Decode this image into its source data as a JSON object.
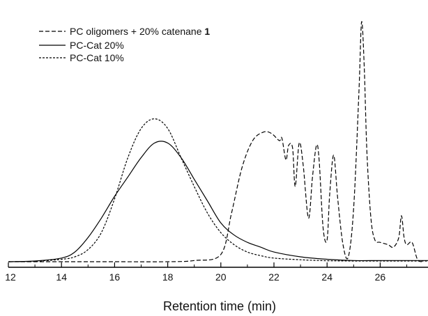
{
  "chart_data": {
    "type": "line",
    "title": "",
    "xlabel": "Retention time (min)",
    "ylabel": "",
    "xlim": [
      12,
      27.8
    ],
    "ylim": [
      0,
      1.0
    ],
    "xticks": [
      12,
      14,
      16,
      18,
      20,
      22,
      24,
      26
    ],
    "grid": false,
    "legend_position": "top-left",
    "series": [
      {
        "name": "PC oligomers + 20% catenane",
        "name_suffix_bold": "1",
        "style": "dashed",
        "x": [
          12,
          14,
          16,
          18,
          19,
          20,
          20.4,
          20.8,
          21.2,
          21.6,
          21.9,
          22.2,
          22.3,
          22.45,
          22.55,
          22.7,
          22.8,
          22.95,
          23.1,
          23.3,
          23.45,
          23.6,
          23.7,
          23.85,
          24.0,
          24.1,
          24.25,
          24.4,
          24.6,
          24.8,
          25.0,
          25.2,
          25.3,
          25.4,
          25.5,
          25.65,
          25.8,
          26.0,
          26.3,
          26.5,
          26.7,
          26.8,
          26.9,
          27.0,
          27.2,
          27.4,
          27.6
        ],
        "values": [
          0.0,
          0.0,
          0.0,
          0.0,
          0.005,
          0.03,
          0.2,
          0.39,
          0.5,
          0.535,
          0.53,
          0.5,
          0.51,
          0.42,
          0.48,
          0.47,
          0.31,
          0.49,
          0.4,
          0.18,
          0.35,
          0.48,
          0.42,
          0.14,
          0.09,
          0.28,
          0.44,
          0.26,
          0.07,
          0.02,
          0.22,
          0.7,
          0.99,
          0.8,
          0.45,
          0.18,
          0.09,
          0.08,
          0.07,
          0.06,
          0.1,
          0.19,
          0.1,
          0.07,
          0.08,
          0.01,
          0.0
        ]
      },
      {
        "name": "PC-Cat 20%",
        "style": "solid",
        "x": [
          12,
          13,
          14,
          14.5,
          15,
          15.5,
          16,
          16.5,
          17,
          17.5,
          18,
          18.5,
          19,
          19.5,
          20,
          20.5,
          21,
          21.5,
          22,
          23,
          24,
          25,
          26,
          27,
          27.8
        ],
        "values": [
          0.0,
          0.003,
          0.015,
          0.04,
          0.1,
          0.18,
          0.27,
          0.35,
          0.43,
          0.49,
          0.49,
          0.43,
          0.34,
          0.25,
          0.16,
          0.11,
          0.08,
          0.06,
          0.04,
          0.02,
          0.01,
          0.005,
          0.005,
          0.005,
          0.005
        ]
      },
      {
        "name": "PC-Cat 10%",
        "style": "short-dashed",
        "x": [
          12,
          13,
          14,
          14.5,
          15,
          15.5,
          16,
          16.5,
          17,
          17.5,
          18,
          18.5,
          19,
          19.5,
          20,
          20.5,
          21,
          21.5,
          22,
          23,
          24,
          25,
          26,
          27,
          27.8
        ],
        "values": [
          0.0,
          0.002,
          0.01,
          0.02,
          0.05,
          0.12,
          0.26,
          0.43,
          0.55,
          0.59,
          0.55,
          0.43,
          0.31,
          0.2,
          0.12,
          0.07,
          0.04,
          0.025,
          0.015,
          0.008,
          0.004,
          0.003,
          0.003,
          0.003,
          0.003
        ]
      }
    ]
  }
}
